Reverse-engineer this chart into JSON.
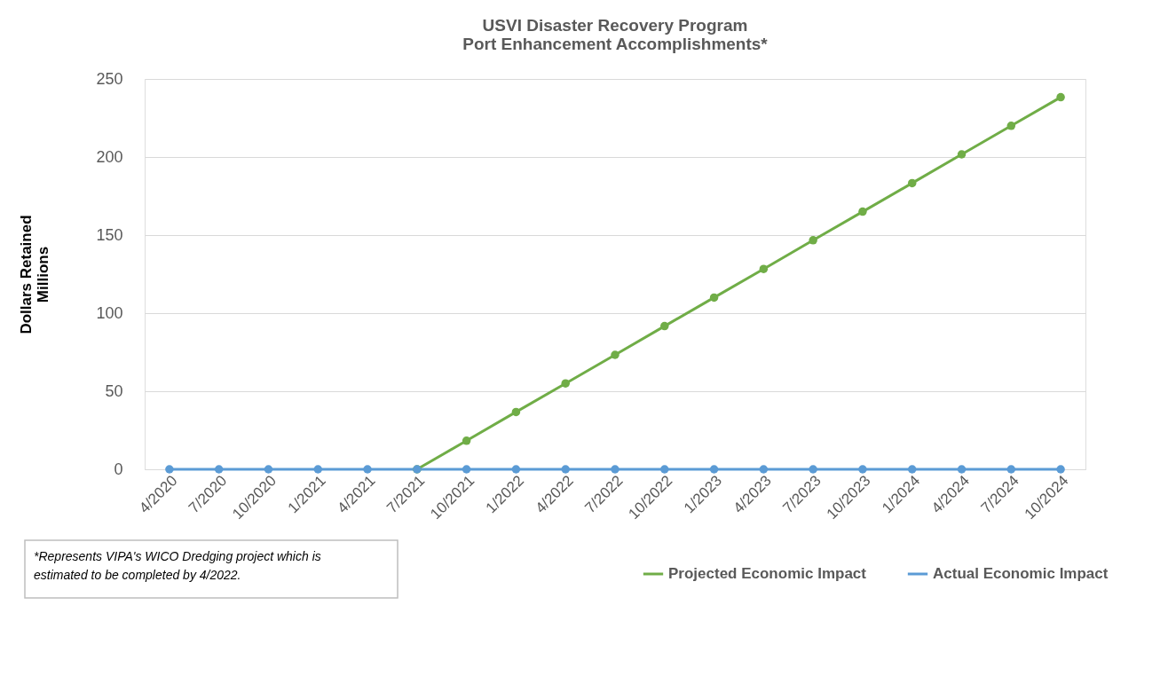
{
  "chart_data": {
    "type": "line",
    "title": "USVI Disaster Recovery Program\nPort Enhancement Accomplishments*",
    "ylabel": "Dollars Retained\nMillions",
    "categories": [
      "4/2020",
      "7/2020",
      "10/2020",
      "1/2021",
      "4/2021",
      "7/2021",
      "10/2021",
      "1/2022",
      "4/2022",
      "7/2022",
      "10/2022",
      "1/2023",
      "4/2023",
      "7/2023",
      "10/2023",
      "1/2024",
      "4/2024",
      "7/2024",
      "10/2024"
    ],
    "series": [
      {
        "name": "Projected Economic Impact",
        "color": "#70ad47",
        "values": [
          null,
          null,
          null,
          null,
          null,
          0,
          18.3,
          36.7,
          55,
          73.3,
          91.7,
          110,
          128.3,
          146.7,
          165,
          183.3,
          201.7,
          220,
          238.3
        ]
      },
      {
        "name": "Actual Economic Impact",
        "color": "#5b9bd5",
        "values": [
          0,
          0,
          0,
          0,
          0,
          0,
          0,
          0,
          0,
          0,
          0,
          0,
          0,
          0,
          0,
          0,
          0,
          0,
          0
        ]
      }
    ],
    "ylim": [
      0,
      250
    ],
    "yticks": [
      0,
      50,
      100,
      150,
      200,
      250
    ],
    "grid": "y",
    "legend": "bottom",
    "marker": "circle",
    "line_style": "solid",
    "annotations": [
      "*Represents VIPA's WICO Dredging project which is\nestimated to be completed by 4/2022."
    ]
  }
}
